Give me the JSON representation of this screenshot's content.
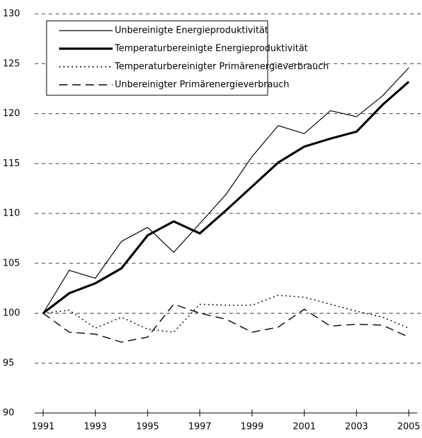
{
  "chart_data": {
    "type": "line",
    "x": [
      1991,
      1992,
      1993,
      1994,
      1995,
      1996,
      1997,
      1998,
      1999,
      2000,
      2001,
      2002,
      2003,
      2004,
      2005
    ],
    "series": [
      {
        "name": "Unbereinigte Energieproduktivität",
        "color": "#000000",
        "width": 1.2,
        "line_style": "solid",
        "values": [
          100,
          104.3,
          103.5,
          107.2,
          108.6,
          106.1,
          109,
          111.9,
          115.7,
          118.8,
          118,
          120.3,
          119.7,
          121.8,
          124.6
        ]
      },
      {
        "name": "Temperaturbereinigte Energieproduktivität",
        "color": "#000000",
        "width": 3.2,
        "line_style": "solid",
        "values": [
          100,
          102,
          103,
          104.5,
          107.8,
          109.2,
          108,
          110.3,
          112.7,
          115.1,
          116.7,
          117.5,
          118.2,
          120.9,
          123.2
        ]
      },
      {
        "name": "Temperaturbereinigter Primärenergieverbrauch",
        "color": "#000000",
        "width": 1.4,
        "line_style": "dotted",
        "values": [
          100,
          100.3,
          98.5,
          99.6,
          98.4,
          98.1,
          100.9,
          100.8,
          100.8,
          101.8,
          101.6,
          100.9,
          100.2,
          99.6,
          98.5
        ]
      },
      {
        "name": "Unbereinigter Primärenergieverbrauch",
        "color": "#000000",
        "width": 1.4,
        "line_style": "dashed",
        "values": [
          100,
          98.1,
          97.9,
          97.1,
          97.6,
          100.9,
          100,
          99.4,
          98.1,
          98.6,
          100.4,
          98.7,
          98.9,
          98.8,
          97.6
        ]
      }
    ],
    "xlim": [
      1990.68,
      2005.32
    ],
    "xticks": [
      1991,
      1993,
      1995,
      1997,
      1999,
      2001,
      2003,
      2005
    ],
    "ylim": [
      90,
      130
    ],
    "yticks": [
      90,
      95,
      100,
      105,
      110,
      115,
      120,
      125,
      130
    ],
    "grid": true,
    "legend": "top-left"
  }
}
